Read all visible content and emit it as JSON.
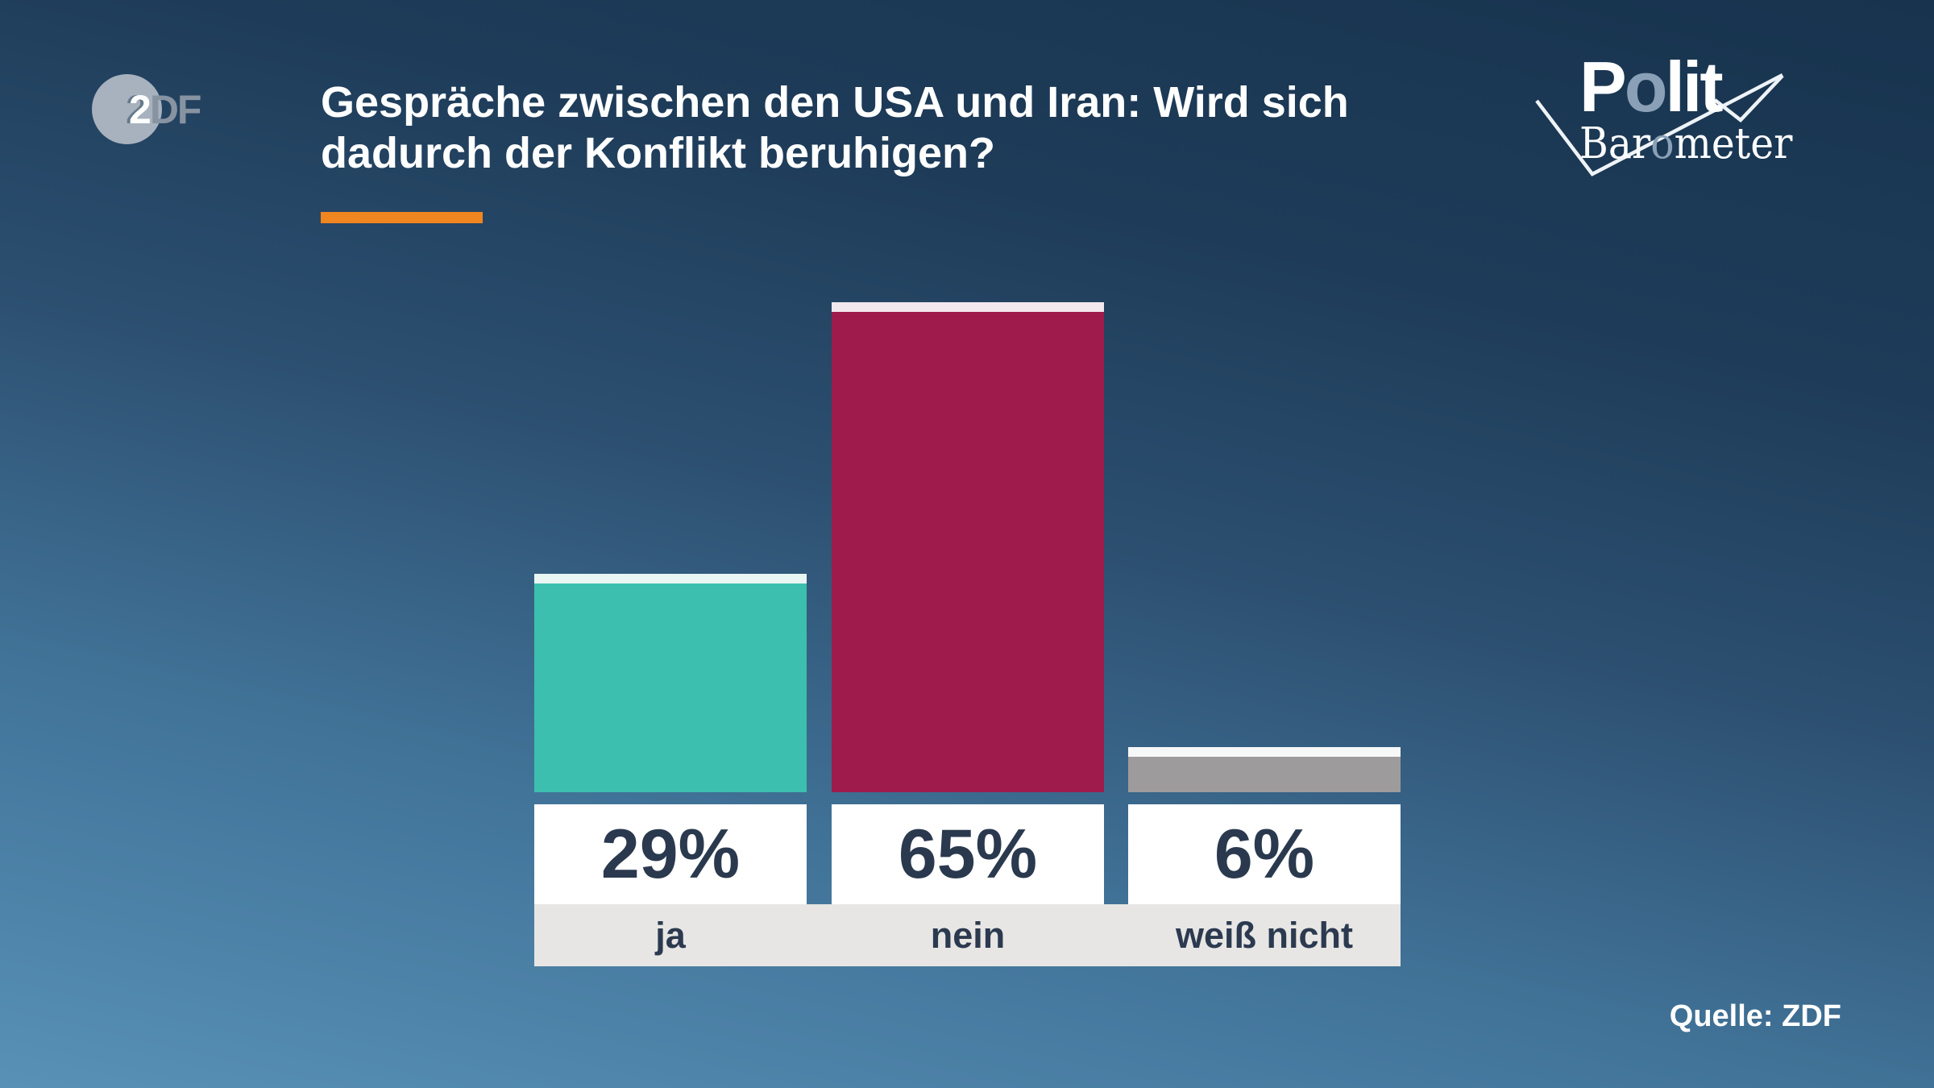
{
  "header": {
    "title_line1": "Gespräche zwischen den USA und Iran: Wird sich",
    "title_line2": "dadurch der Konflikt beruhigen?"
  },
  "branding": {
    "zdf": {
      "two": "2",
      "df": "DF"
    },
    "polit": {
      "p1": "P",
      "o": "o",
      "p2": "lit"
    },
    "barometer": {
      "p1": "Bar",
      "o": "o",
      "p2": "meter"
    }
  },
  "footer": {
    "source": "Quelle: ZDF"
  },
  "chart_data": {
    "type": "bar",
    "title": "Gespräche zwischen den USA und Iran: Wird sich dadurch der Konflikt beruhigen?",
    "categories": [
      "ja",
      "nein",
      "weiß nicht"
    ],
    "values": [
      29,
      65,
      6
    ],
    "value_labels": [
      "29%",
      "65%",
      "6%"
    ],
    "bar_colors": [
      "#3cbfae",
      "#9e1b4c",
      "#9e9b9c"
    ],
    "bar_cap_colors": [
      "#e9f6f4",
      "#f2e8ed",
      "#f6f7f7"
    ],
    "xlabel": "",
    "ylabel": "",
    "ylim": [
      0,
      100
    ],
    "grid": false,
    "legend": "none",
    "source": "Quelle: ZDF"
  },
  "colors": {
    "accent_orange": "#f0861f",
    "background_top": "#17334e",
    "background_bottom": "#5890b6",
    "value_text": "#2a394e",
    "label_text": "#2c3a50",
    "label_strip": "#e7e6e4",
    "value_box": "#ffffff",
    "logo_gray": "#8aa0b6"
  }
}
